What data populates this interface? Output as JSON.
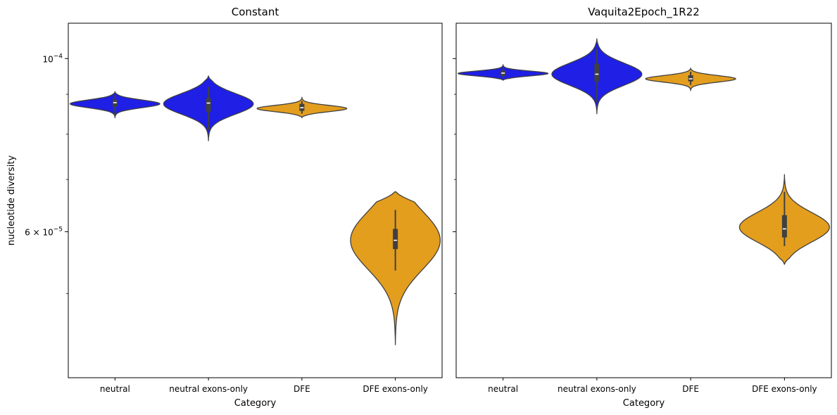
{
  "chart_data": [
    {
      "type": "violin",
      "title": "Constant",
      "xlabel": "Category",
      "ylabel": "nucleotide diversity",
      "yscale": "log",
      "ylim": [
        3.9e-05,
        0.000111
      ],
      "categories": [
        "neutral",
        "neutral exons-only",
        "DFE",
        "DFE exons-only"
      ],
      "y_ticks": [
        {
          "value": 0.0001,
          "label": "10",
          "exp": "−4"
        },
        {
          "value": 6e-05,
          "label": "6 × 10",
          "exp": "−5"
        }
      ],
      "violins": [
        {
          "category": "neutral",
          "color": "#0000ff",
          "min": 8.45e-05,
          "q1": 8.68e-05,
          "median": 8.78e-05,
          "q3": 8.86e-05,
          "max": 8.98e-05,
          "kde_low": 8.4e-05,
          "kde_high": 9.07e-05,
          "mode": 8.75e-05,
          "half_width": 0.48,
          "sigma": 0.28
        },
        {
          "category": "neutral exons-only",
          "color": "#0000ff",
          "min": 8.1e-05,
          "q1": 8.55e-05,
          "median": 8.77e-05,
          "q3": 8.9e-05,
          "max": 9.2e-05,
          "kde_low": 7.85e-05,
          "kde_high": 9.5e-05,
          "mode": 8.75e-05,
          "half_width": 0.48,
          "sigma": 0.28
        },
        {
          "category": "DFE",
          "color": "#ffa500",
          "min": 8.5e-05,
          "q1": 8.57e-05,
          "median": 8.65e-05,
          "q3": 8.75e-05,
          "max": 8.82e-05,
          "kde_low": 8.4e-05,
          "kde_high": 8.92e-05,
          "mode": 8.63e-05,
          "half_width": 0.48,
          "sigma": 0.28
        },
        {
          "category": "DFE exons-only",
          "color": "#ffa500",
          "min": 5.35e-05,
          "q1": 5.7e-05,
          "median": 5.85e-05,
          "q3": 6.05e-05,
          "max": 6.4e-05,
          "kde_low": 4.3e-05,
          "kde_high": 6.75e-05,
          "mode": 5.85e-05,
          "half_width": 0.48,
          "sigma": 0.28
        }
      ]
    },
    {
      "type": "violin",
      "title": "Vaquita2Epoch_1R22",
      "xlabel": "Category",
      "ylabel": "",
      "yscale": "log",
      "ylim": [
        3.9e-05,
        0.000111
      ],
      "categories": [
        "neutral",
        "neutral exons-only",
        "DFE",
        "DFE exons-only"
      ],
      "violins": [
        {
          "category": "neutral",
          "color": "#0000ff",
          "min": 9.45e-05,
          "q1": 9.5e-05,
          "median": 9.58e-05,
          "q3": 9.65e-05,
          "max": 9.72e-05,
          "kde_low": 9.38e-05,
          "kde_high": 9.82e-05,
          "mode": 9.57e-05,
          "half_width": 0.48,
          "sigma": 0.28
        },
        {
          "category": "neutral exons-only",
          "color": "#0000ff",
          "min": 8.8e-05,
          "q1": 9.35e-05,
          "median": 9.55e-05,
          "q3": 9.85e-05,
          "max": 0.000103,
          "kde_low": 8.5e-05,
          "kde_high": 0.000106,
          "mode": 9.55e-05,
          "half_width": 0.48,
          "sigma": 0.28
        },
        {
          "category": "DFE",
          "color": "#ffa500",
          "min": 9.25e-05,
          "q1": 9.35e-05,
          "median": 9.42e-05,
          "q3": 9.52e-05,
          "max": 9.62e-05,
          "kde_low": 9.1e-05,
          "kde_high": 9.72e-05,
          "mode": 9.42e-05,
          "half_width": 0.48,
          "sigma": 0.28
        },
        {
          "category": "DFE exons-only",
          "color": "#ffa500",
          "min": 5.75e-05,
          "q1": 5.9e-05,
          "median": 6.05e-05,
          "q3": 6.3e-05,
          "max": 6.75e-05,
          "kde_low": 5.45e-05,
          "kde_high": 7.1e-05,
          "mode": 6.08e-05,
          "half_width": 0.48,
          "sigma": 0.28
        }
      ]
    }
  ]
}
